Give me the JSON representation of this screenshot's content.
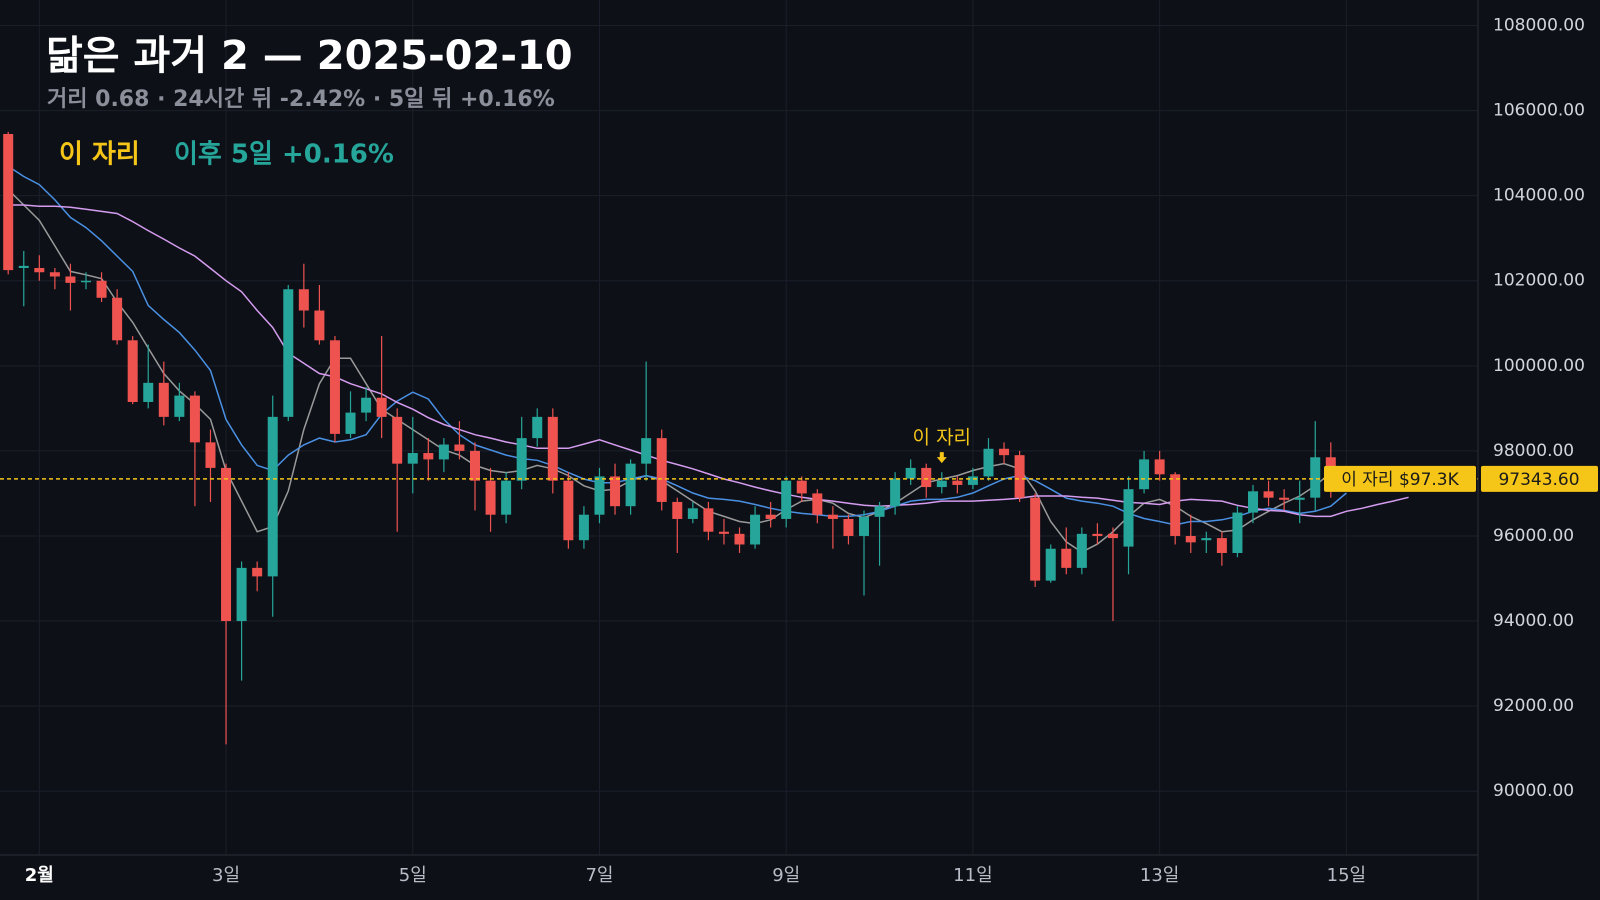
{
  "chart_data": {
    "type": "candlestick",
    "title": "닮은 과거 2 — 2025-02-10",
    "subtitle": "거리 0.68 · 24시간 뒤 -2.42% · 5일 뒤 +0.16%",
    "legend_label": "이 자리",
    "legend_result": "이후 5일 +0.16%",
    "categories": [
      null,
      null,
      "2월",
      null,
      null,
      null,
      null,
      null,
      null,
      null,
      null,
      null,
      null,
      null,
      "3일",
      null,
      null,
      null,
      null,
      null,
      null,
      null,
      null,
      null,
      null,
      null,
      "5일",
      null,
      null,
      null,
      null,
      null,
      null,
      null,
      null,
      null,
      null,
      null,
      "7일",
      null,
      null,
      null,
      null,
      null,
      null,
      null,
      null,
      null,
      null,
      null,
      "9일",
      null,
      null,
      null,
      null,
      null,
      null,
      null,
      null,
      null,
      null,
      null,
      "11일",
      null,
      null,
      null,
      null,
      null,
      null,
      null,
      null,
      null,
      null,
      null,
      "13일",
      null,
      null,
      null,
      null,
      null,
      null,
      null,
      null,
      null,
      null,
      null,
      "15일",
      null,
      null,
      null,
      null,
      null,
      null,
      null
    ],
    "open": [
      105450,
      102300,
      102300,
      102200,
      102100,
      101980,
      102000,
      101600,
      100600,
      99150,
      99600,
      98800,
      99300,
      98200,
      97600,
      94000,
      95250,
      95050,
      98800,
      101800,
      101300,
      100600,
      98400,
      98900,
      99250,
      98800,
      97700,
      97950,
      97800,
      98150,
      98000,
      97300,
      96500,
      97300,
      98300,
      98800,
      97300,
      95900,
      96500,
      97400,
      96700,
      97700,
      98300,
      96800,
      96400,
      96650,
      96100,
      96050,
      95800,
      96500,
      96400,
      97300,
      97000,
      96500,
      96400,
      96000,
      96450,
      96700,
      97350,
      97600,
      97150,
      97300,
      97200,
      97400,
      98050,
      97900,
      96900,
      94950,
      95700,
      95250,
      96050,
      96050,
      95750,
      97100,
      97800,
      97450,
      96000,
      95900,
      95950,
      95600,
      96550,
      97050,
      96900,
      96850,
      96900,
      97850,
      null,
      null,
      null,
      null,
      null,
      null,
      null,
      null
    ],
    "high": [
      105500,
      102700,
      102600,
      102300,
      102400,
      102200,
      102200,
      101800,
      100700,
      100500,
      100100,
      99600,
      99400,
      98500,
      97700,
      95400,
      95400,
      99300,
      101900,
      102400,
      101900,
      100700,
      99400,
      99500,
      100700,
      99000,
      98800,
      98300,
      98300,
      98700,
      98200,
      97600,
      97500,
      98800,
      99000,
      99000,
      97500,
      96700,
      97600,
      97700,
      97800,
      100100,
      98500,
      96900,
      96800,
      96800,
      96400,
      96200,
      96700,
      96800,
      97400,
      97400,
      97100,
      96700,
      96500,
      96600,
      96800,
      97500,
      97800,
      97700,
      97500,
      97400,
      97600,
      98300,
      98200,
      98000,
      97000,
      95800,
      96200,
      96200,
      96300,
      96200,
      97400,
      98000,
      98000,
      97500,
      96500,
      96100,
      96100,
      96700,
      97200,
      97300,
      97100,
      97300,
      98700,
      98200,
      null,
      null,
      null,
      null,
      null,
      null,
      null,
      null
    ],
    "low": [
      102150,
      101400,
      102000,
      101800,
      101300,
      101800,
      101500,
      100500,
      99100,
      99000,
      98600,
      98700,
      96700,
      96800,
      91100,
      92600,
      94700,
      94100,
      98700,
      100900,
      100500,
      98200,
      98300,
      98700,
      98300,
      96100,
      97000,
      97300,
      97500,
      97800,
      96600,
      96100,
      96300,
      97100,
      98100,
      97000,
      95700,
      95700,
      96300,
      96500,
      96500,
      97300,
      96600,
      95600,
      96300,
      95900,
      95800,
      95600,
      95700,
      96200,
      96200,
      96800,
      96300,
      95700,
      95800,
      94600,
      95300,
      96500,
      97200,
      96900,
      97000,
      97000,
      97100,
      97300,
      97700,
      96800,
      94800,
      94900,
      95100,
      95100,
      95800,
      94000,
      95100,
      97000,
      97300,
      95800,
      95600,
      95600,
      95300,
      95500,
      96300,
      96700,
      96600,
      96300,
      96600,
      96900,
      null,
      null,
      null,
      null,
      null,
      null,
      null,
      null
    ],
    "close": [
      102250,
      102350,
      102200,
      102100,
      101950,
      102000,
      101600,
      100600,
      99150,
      99600,
      98800,
      99300,
      98200,
      97600,
      94000,
      95250,
      95050,
      98800,
      101800,
      101300,
      100600,
      98400,
      98900,
      99250,
      98800,
      97700,
      97950,
      97800,
      98150,
      98000,
      97300,
      96500,
      97300,
      98300,
      98800,
      97300,
      95900,
      96500,
      97400,
      96700,
      97700,
      98300,
      96800,
      96400,
      96650,
      96100,
      96050,
      95800,
      96500,
      96400,
      97300,
      97000,
      96500,
      96400,
      96000,
      96450,
      96700,
      97350,
      97600,
      97150,
      97300,
      97200,
      97400,
      98050,
      97900,
      96900,
      94950,
      95700,
      95250,
      96050,
      96000,
      95950,
      97100,
      97800,
      97450,
      96000,
      95850,
      95950,
      95600,
      96550,
      97050,
      96900,
      96850,
      96900,
      97850,
      97050,
      null,
      null,
      null,
      null,
      null,
      null,
      null,
      null
    ],
    "up_color": "#26a69a",
    "down_color": "#ef5350",
    "lines": [
      {
        "color": "#9a9a9a",
        "values": [
          104140,
          103780,
          103420,
          102820,
          102220,
          102140,
          102050,
          101500,
          101020,
          100420,
          99820,
          99410,
          99100,
          98740,
          97540,
          96820,
          96100,
          96220,
          97060,
          98500,
          99580,
          100180,
          100180,
          99580,
          98980,
          98740,
          98500,
          98260,
          98020,
          97900,
          97660,
          97540,
          97490,
          97540,
          97660,
          97580,
          97420,
          97180,
          97060,
          97100,
          97300,
          97420,
          97300,
          97060,
          96820,
          96580,
          96460,
          96340,
          96290,
          96380,
          96620,
          96820,
          96860,
          96770,
          96530,
          96430,
          96580,
          96770,
          97010,
          97250,
          97340,
          97420,
          97540,
          97630,
          97700,
          97580,
          97060,
          96340,
          95860,
          95620,
          95810,
          96100,
          96460,
          96770,
          96860,
          96700,
          96460,
          96290,
          96100,
          96140,
          96380,
          96580,
          96770,
          96940,
          97180,
          97490,
          null,
          null,
          null,
          null,
          null,
          null,
          null,
          null
        ]
      },
      {
        "color": "#4a90e2",
        "values": [
          104690,
          104450,
          104260,
          103900,
          103490,
          103250,
          102940,
          102580,
          102220,
          101420,
          101090,
          100780,
          100370,
          99890,
          98740,
          98140,
          97660,
          97540,
          97900,
          98140,
          98300,
          98210,
          98260,
          98380,
          98860,
          99170,
          99380,
          99220,
          98740,
          98380,
          98140,
          98020,
          97900,
          97820,
          97780,
          97660,
          97490,
          97340,
          97250,
          97250,
          97340,
          97420,
          97340,
          97180,
          97010,
          96890,
          96860,
          96820,
          96740,
          96650,
          96580,
          96530,
          96500,
          96460,
          96460,
          96500,
          96580,
          96700,
          96820,
          96860,
          96860,
          96910,
          97010,
          97180,
          97340,
          97420,
          97300,
          97100,
          96890,
          96820,
          96770,
          96700,
          96530,
          96410,
          96340,
          96260,
          96340,
          96340,
          96380,
          96460,
          96580,
          96650,
          96600,
          96530,
          96580,
          96700,
          97010,
          null,
          null,
          null,
          null,
          null,
          null,
          null
        ]
      },
      {
        "color": "#d59cf0",
        "values": [
          103780,
          103780,
          103750,
          103750,
          103730,
          103680,
          103630,
          103580,
          103390,
          103180,
          102980,
          102770,
          102580,
          102290,
          102000,
          101740,
          101300,
          100900,
          100300,
          100060,
          99820,
          99740,
          99580,
          99460,
          99340,
          99140,
          98980,
          98780,
          98620,
          98500,
          98380,
          98300,
          98210,
          98140,
          98060,
          98060,
          98060,
          98160,
          98260,
          98140,
          98020,
          97900,
          97780,
          97680,
          97580,
          97460,
          97340,
          97250,
          97150,
          97060,
          96980,
          96910,
          96860,
          96820,
          96770,
          96720,
          96700,
          96720,
          96740,
          96770,
          96820,
          96820,
          96820,
          96840,
          96860,
          96890,
          96940,
          96940,
          96940,
          96910,
          96890,
          96840,
          96790,
          96770,
          96740,
          96820,
          96860,
          96840,
          96820,
          96720,
          96650,
          96600,
          96580,
          96500,
          96460,
          96460,
          96580,
          96650,
          96740,
          96820,
          96910,
          null,
          null,
          null
        ]
      }
    ],
    "ylim": [
      88500,
      108600
    ],
    "yticks": [
      {
        "value": 90000,
        "label": "90000.00"
      },
      {
        "value": 92000,
        "label": "92000.00"
      },
      {
        "value": 94000,
        "label": "94000.00"
      },
      {
        "value": 96000,
        "label": "96000.00"
      },
      {
        "value": 98000,
        "label": "98000.00"
      },
      {
        "value": 100000,
        "label": "100000.00"
      },
      {
        "value": 102000,
        "label": "102000.00"
      },
      {
        "value": 104000,
        "label": "104000.00"
      },
      {
        "value": 106000,
        "label": "106000.00"
      },
      {
        "value": 108000,
        "label": "108000.00"
      }
    ],
    "grid": true,
    "price_line": {
      "value": 97343.6,
      "label": "97343.60",
      "tag": "이 자리 $97.3K",
      "color": "#f5c518"
    },
    "annotations": [
      {
        "text": "이 자리",
        "index": 60
      }
    ]
  }
}
